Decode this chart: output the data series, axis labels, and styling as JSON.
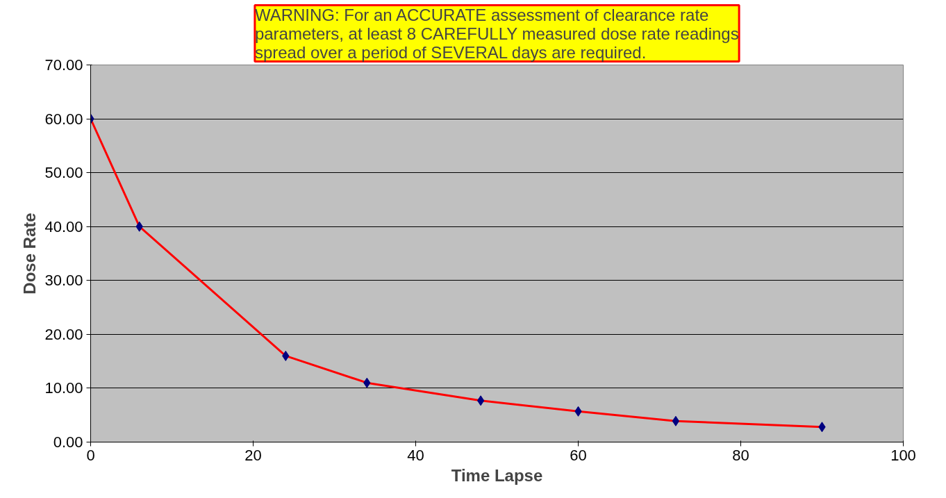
{
  "chart_data": {
    "type": "line",
    "xlabel": "Time Lapse",
    "ylabel": "Dose Rate",
    "annotations": [
      "WARNING: For an ACCURATE assessment of clearance rate parameters, at least 8 CAREFULLY measured dose rate readings spread over a period of SEVERAL days are required."
    ],
    "x": [
      0,
      6,
      24,
      34,
      48,
      60,
      72,
      90
    ],
    "series": [
      {
        "color": "#ff0000",
        "values": [
          60,
          40,
          16,
          11,
          7.7,
          5.7,
          3.9,
          2.8
        ]
      }
    ],
    "xlim": [
      0,
      100
    ],
    "xticks": [
      0,
      20,
      40,
      60,
      80,
      100
    ],
    "ylim": [
      0,
      70
    ],
    "yticks": [
      {
        "value": 0,
        "label": "0.00"
      },
      {
        "value": 10,
        "label": "10.00"
      },
      {
        "value": 20,
        "label": "20.00"
      },
      {
        "value": 30,
        "label": "30.00"
      },
      {
        "value": 40,
        "label": "40.00"
      },
      {
        "value": 50,
        "label": "50.00"
      },
      {
        "value": 60,
        "label": "60.00"
      },
      {
        "value": 70,
        "label": "70.00"
      }
    ],
    "grid": "y",
    "marker": "diamond",
    "line_style": "solid"
  }
}
